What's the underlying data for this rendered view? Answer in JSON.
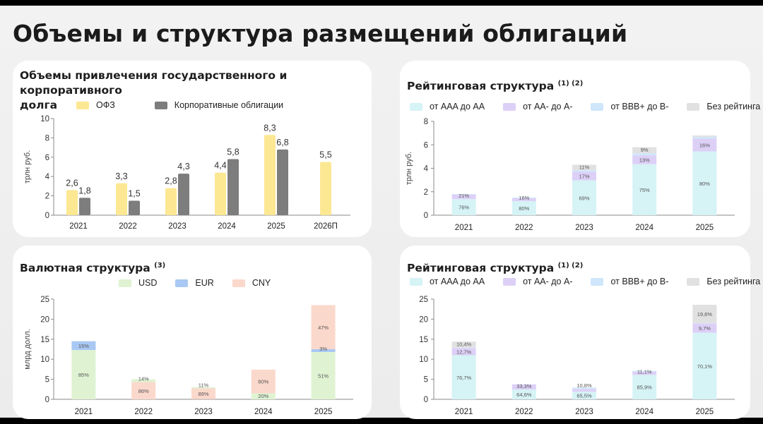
{
  "page_title": "Объемы и структура размещений облигаций",
  "colors": {
    "ofz": "#fce793",
    "corp": "#7d7d7d",
    "usd": "#dff3d2",
    "eur": "#a9c8f3",
    "cny": "#fbd8cc",
    "aaa_aa": "#d6f3f6",
    "aa_a": "#ddd0f7",
    "bbb_b": "#cfe6fb",
    "no_rating": "#e1e1e1"
  },
  "chart_data": [
    {
      "type": "bar",
      "title_line1": "Объемы привлечения государственного и корпоративного",
      "title_line2": "долга",
      "ylabel": "трлн руб.",
      "ylim": [
        0,
        10
      ],
      "yticks": [
        "0",
        "2",
        "4",
        "6",
        "8",
        "10"
      ],
      "categories": [
        "2021",
        "2022",
        "2023",
        "2024",
        "2025",
        "2026П"
      ],
      "series": [
        {
          "name": "ОФЗ",
          "values": [
            2.6,
            3.3,
            2.8,
            4.4,
            8.3,
            5.5
          ],
          "labels": [
            "2,6",
            "3,3",
            "2,8",
            "4,4",
            "8,3",
            "5,5"
          ]
        },
        {
          "name": "Корпоративные облигации",
          "values": [
            1.8,
            1.5,
            4.3,
            5.8,
            6.8,
            null
          ],
          "labels": [
            "1,8",
            "1,5",
            "4,3",
            "5,8",
            "6,8",
            ""
          ]
        }
      ]
    },
    {
      "type": "bar",
      "stacked": true,
      "title": "Рейтинговая структура",
      "title_note": "(1) (2)",
      "ylabel": "трлн руб.",
      "ylim": [
        0,
        8
      ],
      "yticks": [
        "0",
        "2",
        "4",
        "6",
        "8"
      ],
      "categories": [
        "2021",
        "2022",
        "2023",
        "2024",
        "2025"
      ],
      "series": [
        {
          "name": "от AAA до AA",
          "values": [
            1.37,
            1.2,
            2.97,
            4.35,
            5.44
          ],
          "labels": [
            "76%",
            "80%",
            "69%",
            "75%",
            "80%"
          ]
        },
        {
          "name": "от AA- до A-",
          "values": [
            0.38,
            0.24,
            0.73,
            0.75,
            1.09
          ],
          "labels": [
            "21%",
            "16%",
            "17%",
            "13%",
            "16%"
          ]
        },
        {
          "name": "от BBB+ до B-",
          "values": [
            0.05,
            0.06,
            0.13,
            0.18,
            0.14
          ],
          "labels": [
            "",
            "",
            "",
            "",
            ""
          ]
        },
        {
          "name": "Без рейтинга",
          "values": [
            0,
            0,
            0.47,
            0.52,
            0.13
          ],
          "labels": [
            "",
            "",
            "11%",
            "9%",
            ""
          ]
        }
      ]
    },
    {
      "type": "bar",
      "stacked": true,
      "title": "Валютная структура",
      "title_note": "(3)",
      "ylabel": "млрд долл.",
      "ylim": [
        0,
        25
      ],
      "yticks": [
        "0",
        "5",
        "10",
        "15",
        "20",
        "25"
      ],
      "categories": [
        "2021",
        "2022",
        "2023",
        "2024",
        "2025"
      ],
      "series": [
        {
          "name": "USD",
          "values": [
            12.3,
            0,
            0,
            1.5,
            11.8
          ],
          "labels": [
            "85%",
            "",
            "",
            "20%",
            "51%"
          ]
        },
        {
          "name": "EUR",
          "values": [
            2.2,
            0,
            0.03,
            0,
            0.7
          ],
          "labels": [
            "15%",
            "",
            "",
            "",
            "3%"
          ]
        },
        {
          "name": "CNY",
          "values": [
            0,
            4.3,
            2.7,
            5.9,
            11.0
          ],
          "labels": [
            "",
            "86%",
            "89%",
            "80%",
            "47%"
          ]
        },
        {
          "name": "",
          "values": [
            0,
            0.7,
            0.3,
            0,
            0
          ],
          "labels": [
            "",
            "14%",
            "11%",
            "",
            ""
          ]
        }
      ]
    },
    {
      "type": "bar",
      "stacked": true,
      "title": "Рейтинговая структура",
      "title_note": "(1) (2)",
      "ylabel": "",
      "ylim": [
        0,
        25
      ],
      "yticks": [
        "0",
        "5",
        "10",
        "15",
        "20",
        "25"
      ],
      "categories": [
        "2021",
        "2022",
        "2023",
        "2024",
        "2025"
      ],
      "series": [
        {
          "name": "от AAA до AA",
          "values": [
            11.0,
            2.45,
            1.9,
            6.1,
            16.6
          ],
          "labels": [
            "76,7%",
            "64,6%",
            "65,5%",
            "85,9%",
            "70,1%"
          ]
        },
        {
          "name": "от AA- до A-",
          "values": [
            1.8,
            1.25,
            0.7,
            0.79,
            2.3
          ],
          "labels": [
            "12,7%",
            "33,3%",
            "",
            "11,1%",
            "9,7%"
          ]
        },
        {
          "name": "от BBB+ до B-",
          "values": [
            0.1,
            0.05,
            0.31,
            0.2,
            0.1
          ],
          "labels": [
            "",
            "",
            "10,8%",
            "",
            ""
          ]
        },
        {
          "name": "Без рейтинга",
          "values": [
            1.5,
            0,
            0,
            0,
            4.6
          ],
          "labels": [
            "10,4%",
            "",
            "",
            "",
            "19,6%"
          ]
        }
      ]
    }
  ]
}
